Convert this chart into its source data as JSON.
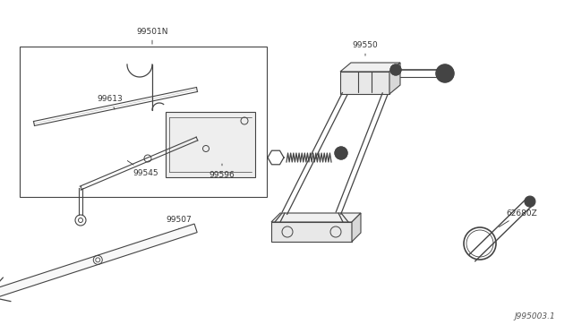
{
  "bg_color": "#ffffff",
  "line_color": "#444444",
  "label_color": "#333333",
  "fig_width": 6.4,
  "fig_height": 3.72,
  "dpi": 100,
  "footer_text": "J995003.1",
  "font_size": 6.5
}
